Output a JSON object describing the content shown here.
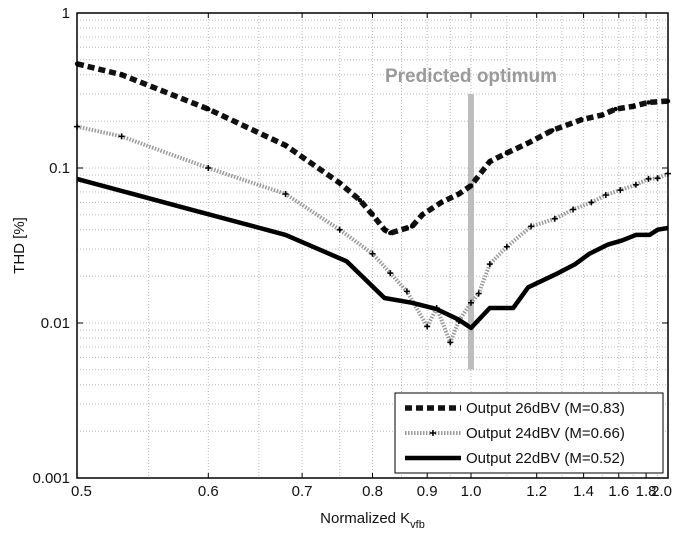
{
  "chart_data": {
    "type": "line",
    "xlabel": "Normalized K",
    "xlabel_sub": "vfb",
    "ylabel": "THD [%]",
    "x_scale": "reciprocal",
    "y_scale": "log",
    "xlim": [
      0.5,
      2.0
    ],
    "ylim": [
      0.001,
      1
    ],
    "x_ticks": [
      0.5,
      0.6,
      0.7,
      0.8,
      0.9,
      1.0,
      1.2,
      1.4,
      1.6,
      1.8,
      2.0
    ],
    "x_tick_labels": [
      "0.5",
      "0.6",
      "0.7",
      "0.8",
      "0.9",
      "1.0",
      "1.2",
      "1.4",
      "1.6",
      "1.8",
      "2.0"
    ],
    "y_ticks": [
      0.001,
      0.01,
      0.1,
      1
    ],
    "y_tick_labels": [
      "0.001",
      "0.01",
      "0.1",
      "1"
    ],
    "grid": true,
    "legend_position": "bottom-right",
    "annotation": {
      "text": "Predicted optimum",
      "x": 1.0,
      "y_range": [
        0.005,
        0.3
      ]
    },
    "series": [
      {
        "name": "Output 26dBV (M=0.83)",
        "style": "dashed-dots",
        "color": "#111111",
        "points": [
          [
            0.5,
            0.47
          ],
          [
            0.53,
            0.4
          ],
          [
            0.6,
            0.24
          ],
          [
            0.68,
            0.14
          ],
          [
            0.75,
            0.08
          ],
          [
            0.78,
            0.062
          ],
          [
            0.8,
            0.05
          ],
          [
            0.82,
            0.04
          ],
          [
            0.83,
            0.038
          ],
          [
            0.86,
            0.041
          ],
          [
            0.87,
            0.042
          ],
          [
            0.89,
            0.05
          ],
          [
            0.93,
            0.06
          ],
          [
            0.97,
            0.068
          ],
          [
            1.0,
            0.077
          ],
          [
            1.05,
            0.11
          ],
          [
            1.1,
            0.125
          ],
          [
            1.17,
            0.145
          ],
          [
            1.26,
            0.175
          ],
          [
            1.39,
            0.205
          ],
          [
            1.5,
            0.22
          ],
          [
            1.58,
            0.24
          ],
          [
            1.7,
            0.25
          ],
          [
            1.82,
            0.265
          ],
          [
            2.0,
            0.27
          ]
        ]
      },
      {
        "name": "Output 24dBV (M=0.66)",
        "style": "dotted-plus",
        "color": "#9a9a9a",
        "points": [
          [
            0.5,
            0.185
          ],
          [
            0.53,
            0.16
          ],
          [
            0.6,
            0.1
          ],
          [
            0.68,
            0.068
          ],
          [
            0.75,
            0.04
          ],
          [
            0.8,
            0.028
          ],
          [
            0.83,
            0.021
          ],
          [
            0.86,
            0.016
          ],
          [
            0.9,
            0.0095
          ],
          [
            0.92,
            0.0125
          ],
          [
            0.95,
            0.0075
          ],
          [
            0.97,
            0.0103
          ],
          [
            1.0,
            0.0135
          ],
          [
            1.02,
            0.0155
          ],
          [
            1.05,
            0.024
          ],
          [
            1.1,
            0.031
          ],
          [
            1.18,
            0.042
          ],
          [
            1.27,
            0.047
          ],
          [
            1.35,
            0.054
          ],
          [
            1.44,
            0.06
          ],
          [
            1.52,
            0.067
          ],
          [
            1.61,
            0.072
          ],
          [
            1.72,
            0.078
          ],
          [
            1.82,
            0.085
          ],
          [
            1.9,
            0.086
          ],
          [
            2.0,
            0.092
          ]
        ]
      },
      {
        "name": "Output 22dBV (M=0.52)",
        "style": "solid-thick",
        "color": "#000000",
        "points": [
          [
            0.5,
            0.085
          ],
          [
            0.58,
            0.055
          ],
          [
            0.68,
            0.037
          ],
          [
            0.76,
            0.025
          ],
          [
            0.82,
            0.0145
          ],
          [
            0.87,
            0.0135
          ],
          [
            0.92,
            0.0123
          ],
          [
            0.97,
            0.0105
          ],
          [
            1.0,
            0.0093
          ],
          [
            1.05,
            0.0125
          ],
          [
            1.12,
            0.0125
          ],
          [
            1.17,
            0.017
          ],
          [
            1.27,
            0.0205
          ],
          [
            1.36,
            0.024
          ],
          [
            1.43,
            0.028
          ],
          [
            1.53,
            0.032
          ],
          [
            1.62,
            0.034
          ],
          [
            1.72,
            0.037
          ],
          [
            1.83,
            0.037
          ],
          [
            1.9,
            0.04
          ],
          [
            2.0,
            0.041
          ]
        ]
      }
    ]
  }
}
